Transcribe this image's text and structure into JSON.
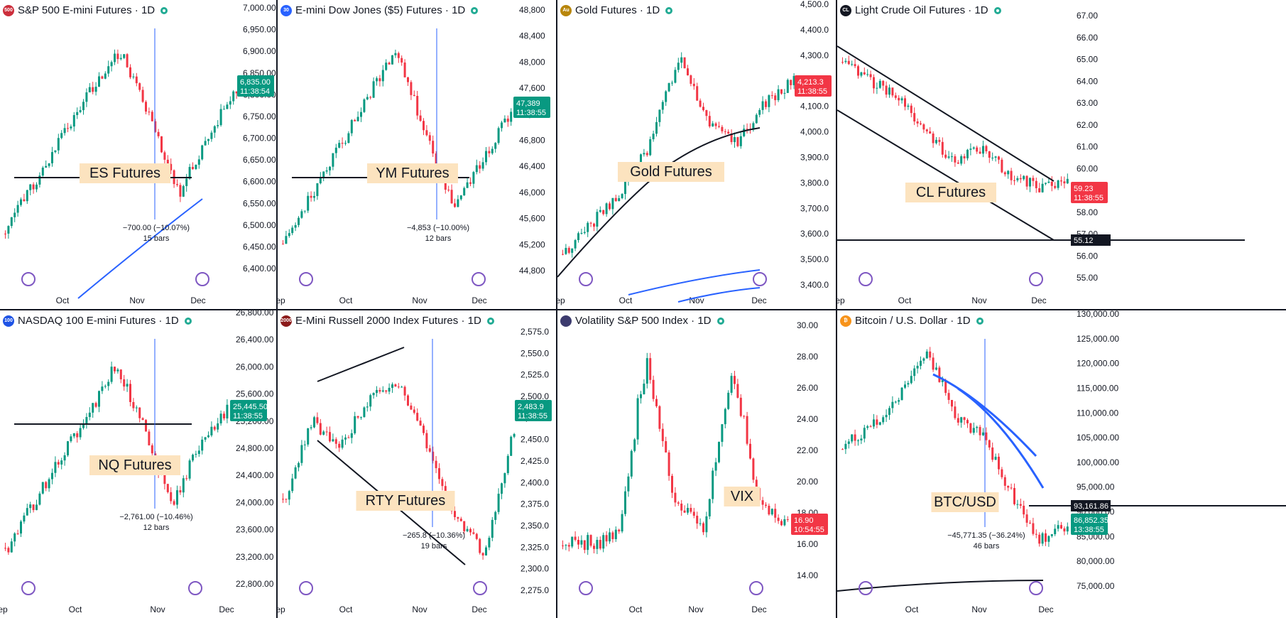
{
  "panels": [
    {
      "title": "S&P 500 E-mini Futures · 1D",
      "icon": {
        "name": "sp500-icon",
        "text": "500",
        "color": "#cc2f3c"
      },
      "label": "ES Futures",
      "y_ticks": [
        "7,000.00",
        "6,950.00",
        "6,900.00",
        "6,850.00",
        "6,800.00",
        "6,750.00",
        "6,700.00",
        "6,650.00",
        "6,600.00",
        "6,550.00",
        "6,500.00",
        "6,450.00",
        "6,400.00"
      ],
      "x_ticks": [
        "Oct",
        "Nov",
        "Dec"
      ],
      "price_tag": {
        "value": "6,835.00",
        "time": "11:38:54",
        "color": "#089981"
      },
      "measure": {
        "line1": "−700.00 (−10.07%)",
        "line2": "15 bars"
      },
      "chart_data": {
        "type": "candlestick",
        "ylim": [
          6380,
          7010
        ],
        "trend": "rising, peak 6,950 in early Nov, drop to 6,540, rebound to 6,835",
        "support": 6550
      }
    },
    {
      "title": "E-mini Dow Jones ($5) Futures · 1D",
      "icon": {
        "name": "dow-icon",
        "text": "30",
        "color": "#2962ff"
      },
      "label": "YM Futures",
      "y_ticks": [
        "48,800",
        "48,400",
        "48,000",
        "47,600",
        "47,200",
        "46,800",
        "46,400",
        "46,000",
        "45,600",
        "45,200",
        "44,800"
      ],
      "x_ticks": [
        "ep",
        "Oct",
        "Nov",
        "Dec"
      ],
      "price_tag": {
        "value": "47,389",
        "time": "11:38:55",
        "color": "#089981"
      },
      "measure": {
        "line1": "−4,853 (−10.00%)",
        "line2": "12 bars"
      },
      "chart_data": {
        "type": "candlestick",
        "ylim": [
          44600,
          48950
        ],
        "trend": "rising to 48,500 in Nov, drop to 45,700, rebound to 47,389",
        "support": 45850
      }
    },
    {
      "title": "Gold Futures · 1D",
      "icon": {
        "name": "gold-icon",
        "text": "Au",
        "color": "#b8860b"
      },
      "label": "Gold Futures",
      "y_ticks": [
        "4,500.0",
        "4,400.0",
        "4,300.0",
        "4,200.0",
        "4,100.0",
        "4,000.0",
        "3,900.0",
        "3,800.0",
        "3,700.0",
        "3,600.0",
        "3,500.0",
        "3,400.0"
      ],
      "x_ticks": [
        "ep",
        "Oct",
        "Nov",
        "Dec"
      ],
      "price_tag": {
        "value": "4,213.3",
        "time": "11:38:55",
        "color": "#f23645"
      },
      "measure": {
        "line1": "",
        "line2": ""
      },
      "chart_data": {
        "type": "candlestick",
        "ylim": [
          3380,
          4510
        ],
        "trend": "steady rise to 4,380 peak in Oct, pullback to 3,950, recovery to 4,213"
      }
    },
    {
      "title": "Light Crude Oil Futures · 1D",
      "icon": {
        "name": "crude-oil-icon",
        "text": "CL",
        "color": "#131722"
      },
      "label": "CL Futures",
      "y_ticks": [
        "67.00",
        "66.00",
        "65.00",
        "64.00",
        "63.00",
        "62.00",
        "61.00",
        "60.00",
        "59.00",
        "58.00",
        "57.00",
        "56.00",
        "55.00"
      ],
      "x_ticks": [
        "ep",
        "Oct",
        "Nov",
        "Dec"
      ],
      "price_tag": {
        "value": "59.23",
        "time": "11:38:55",
        "color": "#f23645"
      },
      "level_tag": {
        "value": "55.12",
        "color": "#131722"
      },
      "measure": {
        "line1": "",
        "line2": ""
      },
      "chart_data": {
        "type": "candlestick",
        "ylim": [
          54.5,
          67.5
        ],
        "trend": "descending channel from 65 to 59.23",
        "level": 55.12
      }
    },
    {
      "title": "NASDAQ 100 E-mini Futures · 1D",
      "icon": {
        "name": "nasdaq-icon",
        "text": "100",
        "color": "#1e53e5"
      },
      "label": "NQ Futures",
      "y_ticks": [
        "26,800.00",
        "26,400.00",
        "26,000.00",
        "25,600.00",
        "25,200.00",
        "24,800.00",
        "24,400.00",
        "24,000.00",
        "23,600.00",
        "23,200.00",
        "22,800.00"
      ],
      "x_ticks": [
        "ep",
        "Oct",
        "Nov",
        "Dec"
      ],
      "price_tag": {
        "value": "25,445.50",
        "time": "11:38:55",
        "color": "#089981"
      },
      "measure": {
        "line1": "−2,761.00 (−10.46%)",
        "line2": "12 bars"
      },
      "chart_data": {
        "type": "candlestick",
        "ylim": [
          22600,
          26850
        ],
        "trend": "rising to 26,300 in Nov, drop to 24,000, rebound to 25,445",
        "support": 24200
      }
    },
    {
      "title": "E-Mini Russell 2000 Index Futures · 1D",
      "icon": {
        "name": "russell-icon",
        "text": "2000",
        "color": "#8b1a1a"
      },
      "label": "RTY Futures",
      "y_ticks": [
        "2,575.0",
        "2,550.0",
        "2,525.0",
        "2,500.0",
        "2,475.0",
        "2,450.0",
        "2,425.0",
        "2,400.0",
        "2,375.0",
        "2,350.0",
        "2,325.0",
        "2,300.0",
        "2,275.0"
      ],
      "x_ticks": [
        "ep",
        "Oct",
        "Nov",
        "Dec"
      ],
      "price_tag": {
        "value": "2,483.9",
        "time": "11:38:55",
        "color": "#089981"
      },
      "measure": {
        "line1": "−265.8 (−10.36%)",
        "line2": "19 bars"
      },
      "chart_data": {
        "type": "candlestick",
        "ylim": [
          2265,
          2585
        ],
        "trend": "broadening pattern, drop to 2,300, rebound to 2,483.9"
      }
    },
    {
      "title": "Volatility S&P 500 Index · 1D",
      "icon": {
        "name": "us-flag-icon",
        "text": "",
        "color": "#3c3b6e"
      },
      "label": "VIX",
      "y_ticks": [
        "30.00",
        "28.00",
        "26.00",
        "24.00",
        "22.00",
        "20.00",
        "18.00",
        "16.00",
        "14.00"
      ],
      "x_ticks": [
        "Oct",
        "Nov",
        "Dec"
      ],
      "price_tag": {
        "value": "16.90",
        "time": "10:54:55",
        "color": "#f23645"
      },
      "measure": {
        "line1": "",
        "line2": ""
      },
      "chart_data": {
        "type": "candlestick",
        "ylim": [
          13,
          30.5
        ],
        "trend": "low 15-17 with spikes to 28 in Oct and Nov, now 16.90"
      }
    },
    {
      "title": "Bitcoin / U.S. Dollar · 1D",
      "icon": {
        "name": "bitcoin-icon",
        "text": "₿",
        "color": "#f7931a"
      },
      "label": "BTC/USD",
      "y_ticks": [
        "130,000.00",
        "125,000.00",
        "120,000.00",
        "115,000.00",
        "110,000.00",
        "105,000.00",
        "100,000.00",
        "95,000.00",
        "90,000.00",
        "85,000.00",
        "80,000.00",
        "75,000.00"
      ],
      "x_ticks": [
        "Oct",
        "Nov",
        "Dec"
      ],
      "price_tag": {
        "value": "86,852.35",
        "time": "13:38:55",
        "color": "#089981"
      },
      "level_tag": {
        "value": "93,161.86",
        "color": "#131722"
      },
      "measure": {
        "line1": "−45,771.35 (−36.24%)",
        "line2": "46 bars"
      },
      "chart_data": {
        "type": "candlestick",
        "ylim": [
          74000,
          131000
        ],
        "trend": "peak 125,000 early Oct, decline to 82,000, now 86,852.35",
        "level": 93161.86
      }
    }
  ]
}
